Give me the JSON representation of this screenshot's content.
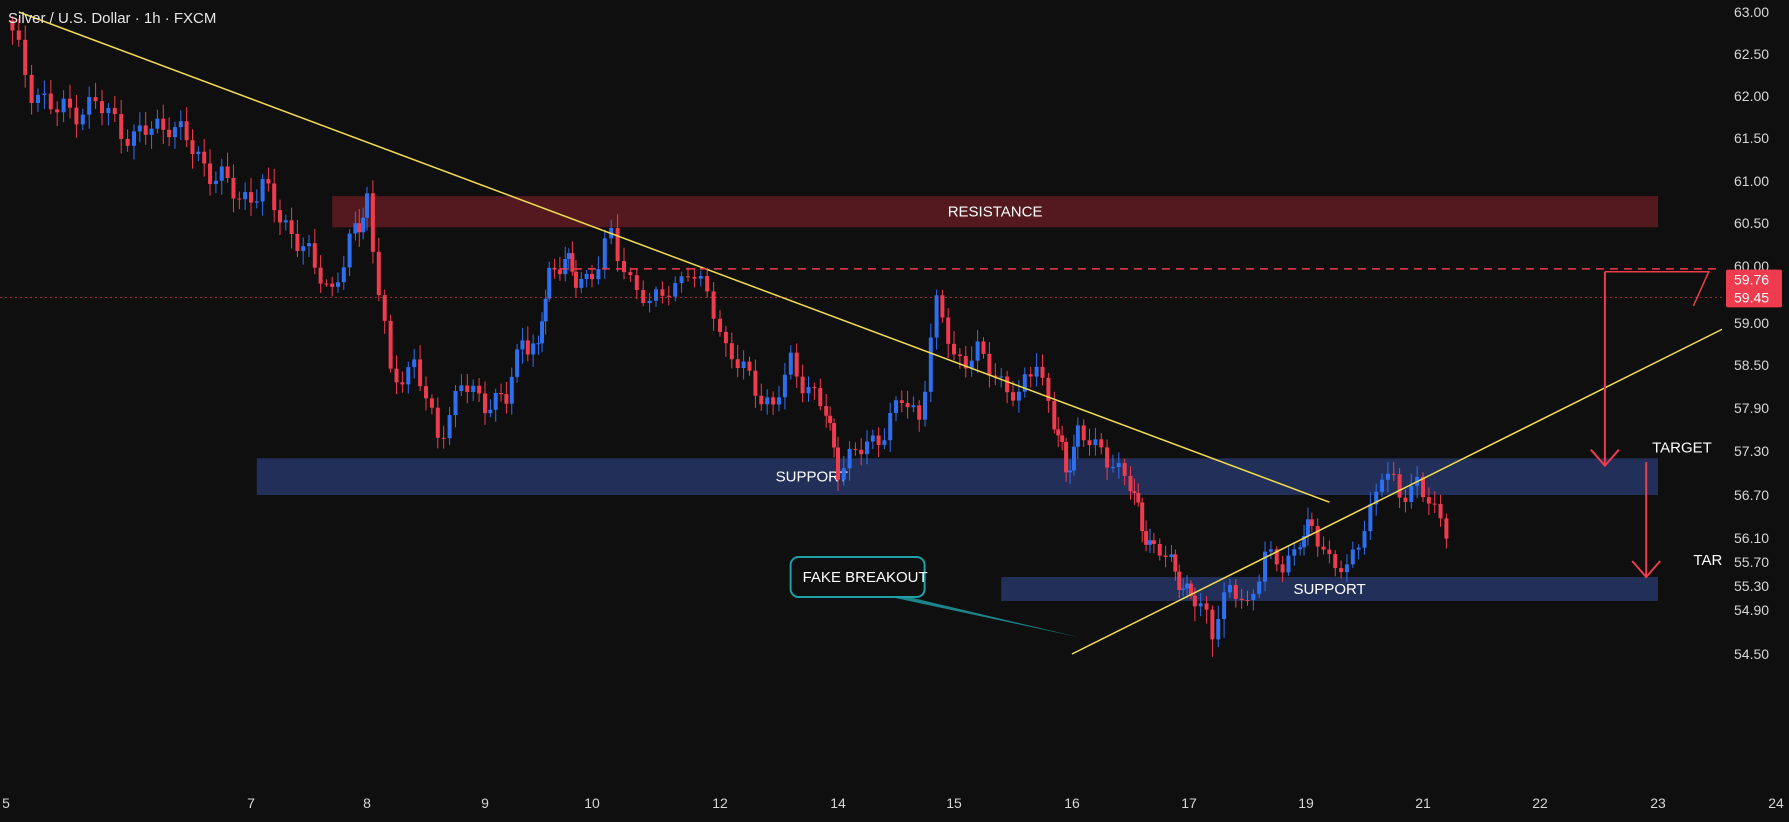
{
  "chart_data": {
    "type": "candlestick",
    "title": "Silver / U.S. Dollar · 1h · FXCM",
    "y_axis": {
      "ticks": [
        "63.00",
        "62.50",
        "62.00",
        "61.50",
        "61.00",
        "60.50",
        "60.00",
        "59.00",
        "58.50",
        "57.90",
        "57.30",
        "56.70",
        "56.10",
        "55.70",
        "55.30",
        "54.90",
        "54.50"
      ],
      "range": [
        54.3,
        63.0
      ],
      "price_labels": [
        {
          "value": 59.76,
          "text": "59.76"
        },
        {
          "value": 59.45,
          "text": "59.45"
        }
      ]
    },
    "x_axis": {
      "ticks": [
        {
          "label": "5",
          "pos": 0
        },
        {
          "label": "7",
          "pos": 2
        },
        {
          "label": "8",
          "pos": 3
        },
        {
          "label": "9",
          "pos": 4
        },
        {
          "label": "10",
          "pos": 5
        },
        {
          "label": "12",
          "pos": 6
        },
        {
          "label": "14",
          "pos": 7
        },
        {
          "label": "15",
          "pos": 8
        },
        {
          "label": "16",
          "pos": 9
        },
        {
          "label": "17",
          "pos": 10
        },
        {
          "label": "19",
          "pos": 11
        },
        {
          "label": "21",
          "pos": 12
        },
        {
          "label": "22",
          "pos": 13
        },
        {
          "label": "23",
          "pos": 14
        },
        {
          "label": "24",
          "pos": 15
        }
      ]
    },
    "zones": [
      {
        "label": "RESISTANCE",
        "low": 60.45,
        "high": 60.82,
        "x0": 2.7,
        "x1": 14.0,
        "color": "#5a1a1f"
      },
      {
        "label": "SUPPORT",
        "low": 56.7,
        "high": 57.2,
        "x0": 2.05,
        "x1": 14.0,
        "color": "#24335f"
      },
      {
        "label": "SUPPORT",
        "low": 55.05,
        "high": 55.45,
        "x0": 8.4,
        "x1": 14.0,
        "color": "#24335f"
      }
    ],
    "trendlines": [
      {
        "x0": 0.1,
        "y0": 63.0,
        "x1": 11.2,
        "y1": 56.6,
        "color": "#f2dd4e"
      },
      {
        "x0": 9.0,
        "y0": 54.5,
        "x1": 14.65,
        "y1": 59.0,
        "color": "#f2dd4e"
      }
    ],
    "dashed_level": {
      "value": 59.95,
      "x0": 4.7,
      "x1": 14.65,
      "color": "#ef3b4e"
    },
    "annotations": [
      {
        "text": "FAKE BREAKOUT",
        "x": 6.7,
        "y": 55.45,
        "point_x": 9.07,
        "point_y": 54.65
      },
      {
        "text": "TARGET",
        "x": 13.95,
        "y": 57.35
      },
      {
        "text": "TARGET",
        "x": 14.3,
        "y": 55.73
      }
    ],
    "target_arrows": [
      {
        "x": 13.55,
        "from": 59.9,
        "to": 57.1
      },
      {
        "x": 13.9,
        "from": 57.15,
        "to": 55.45
      }
    ],
    "series": {
      "bullish_color": "#2e6ff0",
      "bearish_color": "#ef3b4e",
      "close_path": [
        [
          0,
          62.9
        ],
        [
          0.2,
          62.1
        ],
        [
          0.4,
          61.8
        ],
        [
          0.7,
          61.9
        ],
        [
          1.0,
          61.5
        ],
        [
          1.3,
          61.7
        ],
        [
          1.6,
          61.2
        ],
        [
          1.9,
          60.8
        ],
        [
          2.1,
          60.9
        ],
        [
          2.4,
          60.3
        ],
        [
          2.7,
          59.6
        ],
        [
          2.9,
          60.4
        ],
        [
          3.0,
          60.8
        ],
        [
          3.2,
          58.3
        ],
        [
          3.4,
          58.5
        ],
        [
          3.6,
          57.5
        ],
        [
          3.8,
          58.2
        ],
        [
          4.0,
          58.0
        ],
        [
          4.2,
          58.0
        ],
        [
          4.35,
          58.9
        ],
        [
          4.5,
          58.6
        ],
        [
          4.6,
          59.9
        ],
        [
          4.75,
          60.1
        ],
        [
          4.85,
          59.7
        ],
        [
          5.0,
          59.9
        ],
        [
          5.15,
          60.3
        ],
        [
          5.3,
          59.8
        ],
        [
          5.45,
          59.3
        ],
        [
          5.6,
          59.6
        ],
        [
          5.75,
          59.9
        ],
        [
          5.9,
          59.5
        ],
        [
          6.05,
          58.7
        ],
        [
          6.25,
          58.3
        ],
        [
          6.45,
          57.9
        ],
        [
          6.6,
          58.5
        ],
        [
          6.75,
          58.2
        ],
        [
          6.9,
          57.8
        ],
        [
          7.0,
          57.1
        ],
        [
          7.2,
          57.3
        ],
        [
          7.4,
          57.6
        ],
        [
          7.55,
          58.0
        ],
        [
          7.7,
          57.8
        ],
        [
          7.85,
          59.3
        ],
        [
          8.0,
          58.6
        ],
        [
          8.2,
          58.6
        ],
        [
          8.4,
          58.3
        ],
        [
          8.55,
          58.0
        ],
        [
          8.7,
          58.6
        ],
        [
          8.85,
          57.7
        ],
        [
          8.95,
          57.0
        ],
        [
          9.05,
          57.6
        ],
        [
          9.2,
          57.3
        ],
        [
          9.35,
          57.2
        ],
        [
          9.5,
          56.8
        ],
        [
          9.6,
          56.3
        ],
        [
          9.7,
          55.9
        ],
        [
          9.85,
          55.7
        ],
        [
          9.95,
          55.3
        ],
        [
          10.05,
          55.0
        ],
        [
          10.2,
          54.8
        ],
        [
          10.35,
          55.2
        ],
        [
          10.5,
          55.0
        ],
        [
          10.65,
          55.8
        ],
        [
          10.8,
          55.6
        ],
        [
          10.95,
          56.1
        ],
        [
          11.05,
          56.2
        ],
        [
          11.2,
          55.8
        ],
        [
          11.35,
          55.5
        ],
        [
          11.5,
          56.3
        ],
        [
          11.65,
          57.0
        ],
        [
          11.8,
          56.7
        ],
        [
          11.95,
          56.9
        ],
        [
          12.1,
          56.4
        ],
        [
          12.25,
          56.2
        ],
        [
          12.35,
          57.2
        ],
        [
          12.45,
          58.8
        ],
        [
          12.6,
          58.9
        ],
        [
          12.8,
          58.8
        ],
        [
          13.0,
          58.6
        ],
        [
          13.2,
          59.0
        ],
        [
          13.35,
          59.8
        ],
        [
          13.5,
          59.2
        ],
        [
          13.65,
          59.4
        ],
        [
          13.8,
          59.1
        ],
        [
          13.95,
          59.8
        ],
        [
          14.1,
          60.1
        ],
        [
          14.25,
          59.9
        ],
        [
          14.4,
          59.4
        ],
        [
          14.55,
          59.6
        ],
        [
          14.65,
          59.45
        ]
      ]
    }
  }
}
